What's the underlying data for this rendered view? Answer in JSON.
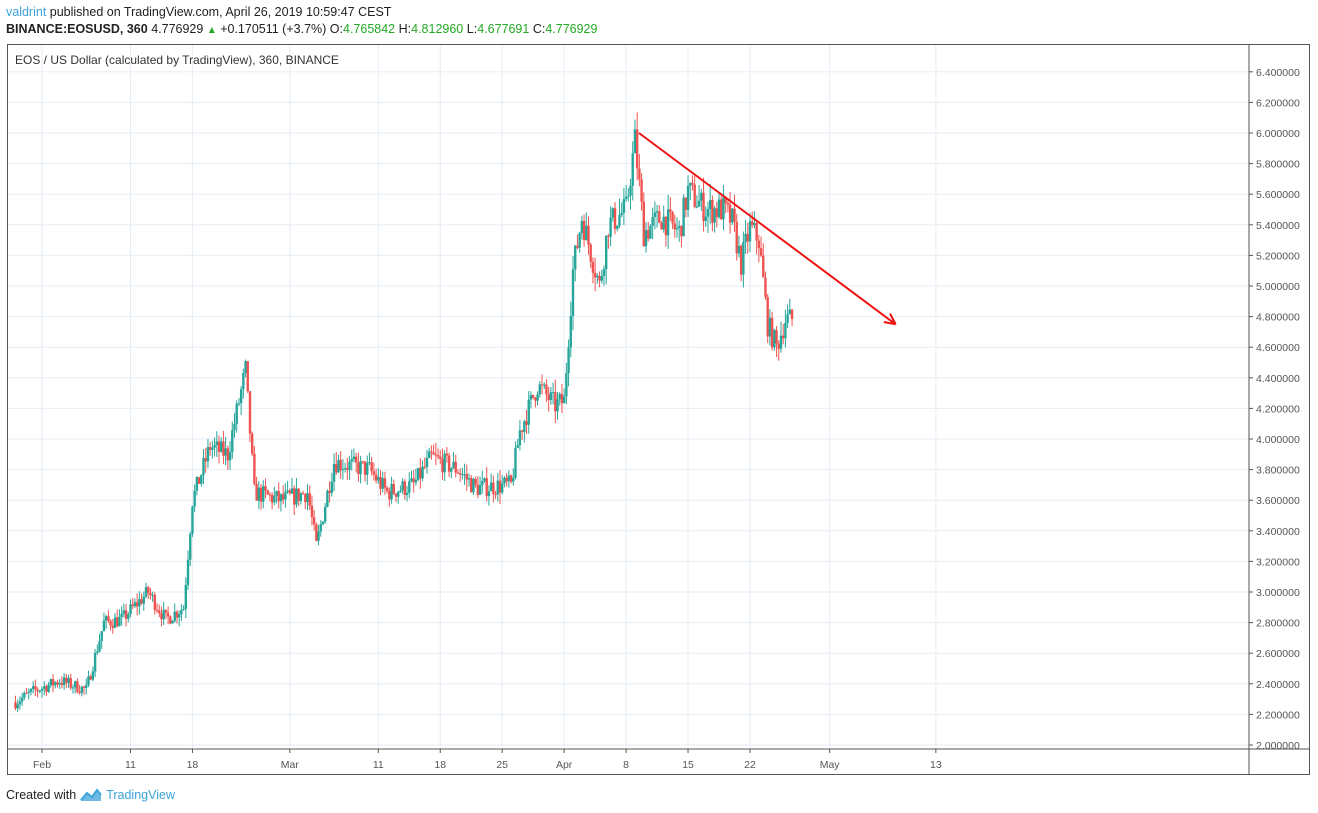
{
  "header": {
    "author": "valdrint",
    "published_text": " published on TradingView.com, April 26, 2019 10:59:47 CEST",
    "symbol": "BINANCE:EOSUSD, 360",
    "last_price": "4.776929",
    "change": "+0.170511 (+3.7%)",
    "o_label": "O:",
    "o_value": "4.765842",
    "h_label": "H:",
    "h_value": "4.812960",
    "l_label": "L:",
    "l_value": "4.677691",
    "c_label": "C:",
    "c_value": "4.776929"
  },
  "chart_legend": "EOS / US Dollar (calculated by TradingView), 360, BINANCE",
  "footer": {
    "created_with": "Created with",
    "brand": "TradingView"
  },
  "colors": {
    "up": "#26a69a",
    "down": "#ef5350",
    "grid": "#e6eef5",
    "trendline": "#ee1111",
    "accent": "#3ca3d8",
    "positive_text": "#23a923"
  },
  "chart_data": {
    "type": "candlestick",
    "title": "EOS / US Dollar (calculated by TradingView), 360, BINANCE",
    "interval": "360 minutes",
    "xlabel": "",
    "ylabel": "USD",
    "ylim": [
      1.95,
      6.55
    ],
    "y_ticks": [
      "6.400000",
      "6.200000",
      "6.000000",
      "5.800000",
      "5.600000",
      "5.400000",
      "5.200000",
      "5.000000",
      "4.800000",
      "4.600000",
      "4.400000",
      "4.200000",
      "4.000000",
      "3.800000",
      "3.600000",
      "3.400000",
      "3.200000",
      "3.000000",
      "2.800000",
      "2.600000",
      "2.400000",
      "2.200000",
      "2.000000"
    ],
    "x_ticks": [
      {
        "label": "Feb",
        "day": 0
      },
      {
        "label": "11",
        "day": 10
      },
      {
        "label": "18",
        "day": 17
      },
      {
        "label": "Mar",
        "day": 28
      },
      {
        "label": "11",
        "day": 38
      },
      {
        "label": "18",
        "day": 45
      },
      {
        "label": "25",
        "day": 52
      },
      {
        "label": "Apr",
        "day": 59
      },
      {
        "label": "8",
        "day": 66
      },
      {
        "label": "15",
        "day": 73
      },
      {
        "label": "22",
        "day": 80
      },
      {
        "label": "May",
        "day": 89
      },
      {
        "label": "13",
        "day": 101
      }
    ],
    "grid": true,
    "daily_close_approx": [
      {
        "date": "2019-01-29",
        "close": 2.28
      },
      {
        "date": "2019-01-31",
        "close": 2.35
      },
      {
        "date": "2019-02-03",
        "close": 2.42
      },
      {
        "date": "2019-02-06",
        "close": 2.36
      },
      {
        "date": "2019-02-08",
        "close": 2.8
      },
      {
        "date": "2019-02-10",
        "close": 2.82
      },
      {
        "date": "2019-02-13",
        "close": 3.0
      },
      {
        "date": "2019-02-15",
        "close": 2.82
      },
      {
        "date": "2019-02-17",
        "close": 2.9
      },
      {
        "date": "2019-02-18",
        "close": 3.6
      },
      {
        "date": "2019-02-20",
        "close": 3.95
      },
      {
        "date": "2019-02-22",
        "close": 3.9
      },
      {
        "date": "2019-02-24",
        "close": 4.45
      },
      {
        "date": "2019-02-25",
        "close": 3.65
      },
      {
        "date": "2019-02-28",
        "close": 3.6
      },
      {
        "date": "2019-03-03",
        "close": 3.65
      },
      {
        "date": "2019-03-04",
        "close": 3.3
      },
      {
        "date": "2019-03-06",
        "close": 3.85
      },
      {
        "date": "2019-03-10",
        "close": 3.8
      },
      {
        "date": "2019-03-12",
        "close": 3.65
      },
      {
        "date": "2019-03-15",
        "close": 3.7
      },
      {
        "date": "2019-03-17",
        "close": 3.88
      },
      {
        "date": "2019-03-20",
        "close": 3.8
      },
      {
        "date": "2019-03-22",
        "close": 3.68
      },
      {
        "date": "2019-03-26",
        "close": 3.7
      },
      {
        "date": "2019-03-27",
        "close": 4.05
      },
      {
        "date": "2019-03-29",
        "close": 4.35
      },
      {
        "date": "2019-03-31",
        "close": 4.22
      },
      {
        "date": "2019-04-01",
        "close": 4.25
      },
      {
        "date": "2019-04-02",
        "close": 5.1
      },
      {
        "date": "2019-04-03",
        "close": 5.45
      },
      {
        "date": "2019-04-05",
        "close": 5.0
      },
      {
        "date": "2019-04-06",
        "close": 5.4
      },
      {
        "date": "2019-04-08",
        "close": 5.5
      },
      {
        "date": "2019-04-09",
        "close": 5.95
      },
      {
        "date": "2019-04-10",
        "close": 5.35
      },
      {
        "date": "2019-04-12",
        "close": 5.45
      },
      {
        "date": "2019-04-14",
        "close": 5.35
      },
      {
        "date": "2019-04-15",
        "close": 5.62
      },
      {
        "date": "2019-04-17",
        "close": 5.5
      },
      {
        "date": "2019-04-19",
        "close": 5.5
      },
      {
        "date": "2019-04-20",
        "close": 5.42
      },
      {
        "date": "2019-04-21",
        "close": 5.15
      },
      {
        "date": "2019-04-22",
        "close": 5.38
      },
      {
        "date": "2019-04-23",
        "close": 5.3
      },
      {
        "date": "2019-04-24",
        "close": 4.75
      },
      {
        "date": "2019-04-25",
        "close": 4.6
      },
      {
        "date": "2019-04-26",
        "close": 4.78
      }
    ],
    "annotations": [
      {
        "type": "trendline_arrow",
        "from": {
          "date": "2019-04-09",
          "price": 6.0
        },
        "to": {
          "date": "2019-05-08",
          "price": 4.75
        },
        "color": "#ee1111"
      }
    ],
    "last": {
      "open": 4.765842,
      "high": 4.81296,
      "low": 4.677691,
      "close": 4.776929,
      "change": 0.170511,
      "change_pct": 3.7
    }
  }
}
